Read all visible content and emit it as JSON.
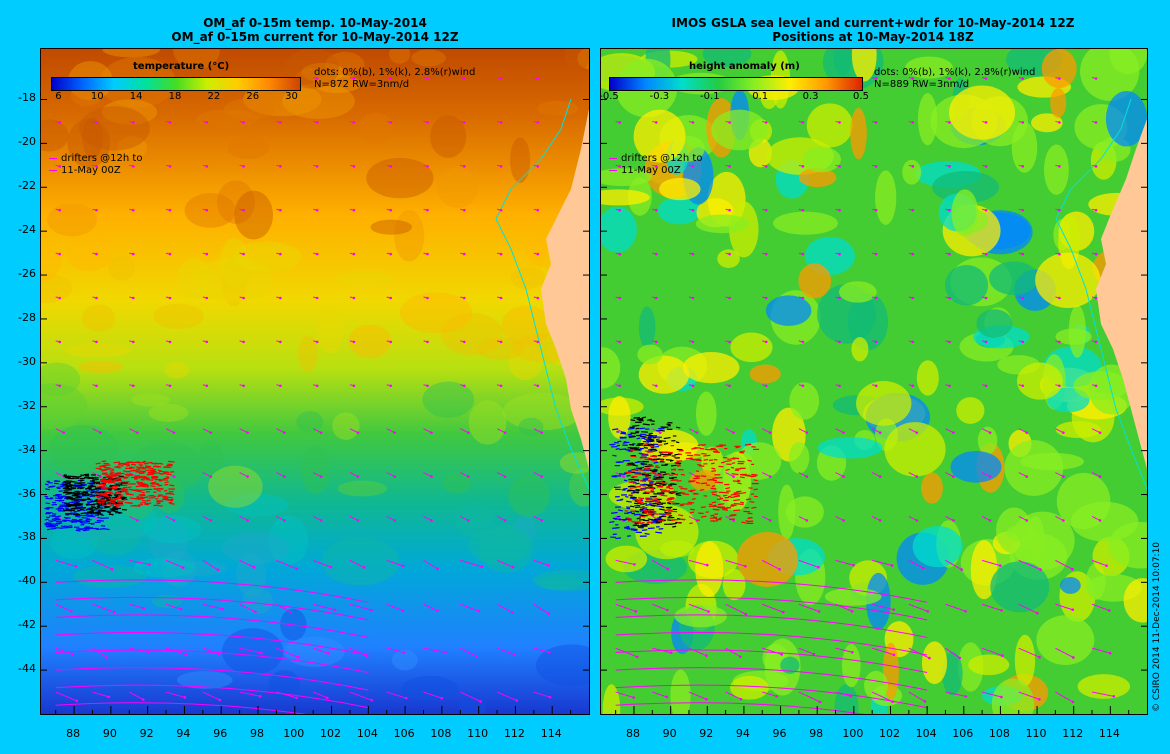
{
  "left": {
    "title_line1": "OM_af 0-15m temp. 10-May-2014",
    "title_line2": "OM_af 0-15m current for 10-May-2014 12Z",
    "colorbar": {
      "title": "temperature (°C)",
      "ticks": [
        "6",
        "10",
        "14",
        "18",
        "22",
        "26",
        "30"
      ],
      "colors": [
        "#0000cc",
        "#0066ff",
        "#00ccff",
        "#00e0a0",
        "#44dd22",
        "#ccee00",
        "#ffcc00",
        "#ff8800",
        "#cc4400"
      ]
    },
    "dots_text": "dots: 0%(b), 1%(k), 2.8%(r)wind",
    "n_text": "N=872 RW=3nm/d",
    "drifters_line1": "drifters @12h to",
    "drifters_line2": "11-May 00Z"
  },
  "right": {
    "title_line1": "IMOS GSLA sea level and current+wdr for 10-May-2014 12Z",
    "title_line2": "Positions at 10-May-2014 18Z",
    "colorbar": {
      "title": "height anomaly (m)",
      "ticks": [
        "-0.5",
        "-0.3",
        "-0.1",
        "0.1",
        "0.3",
        "0.5"
      ],
      "colors": [
        "#0000cc",
        "#0088ff",
        "#00ddcc",
        "#22cc44",
        "#88ee22",
        "#ffee00",
        "#ff9900",
        "#dd2200"
      ]
    },
    "dots_text": "dots: 0%(b), 1%(k), 2.8%(r)wind",
    "n_text": "N=889 RW=3nm/d",
    "drifters_line1": "drifters @12h to",
    "drifters_line2": "11-May 00Z"
  },
  "lat_labels": [
    "-18",
    "-20",
    "-22",
    "-24",
    "-26",
    "-28",
    "-30",
    "-32",
    "-34",
    "-36",
    "-38",
    "-40",
    "-42",
    "-44"
  ],
  "lon_labels": [
    "88",
    "90",
    "92",
    "94",
    "96",
    "98",
    "100",
    "102",
    "104",
    "106",
    "108",
    "110",
    "112",
    "114"
  ],
  "map_extent": {
    "lon": [
      86.2,
      116.0
    ],
    "lat": [
      -46.0,
      -15.7
    ]
  },
  "colors": {
    "background": "#00ccff",
    "land": "#ffc896",
    "coastline": "#00e0e0",
    "vectors": "#ff00ff",
    "drifter_red": "#ff0000",
    "drifter_black": "#000000",
    "drifter_blue": "#0000ff"
  },
  "credit": "© CSIRO 2014   11-Dec-2014 10:07:10"
}
